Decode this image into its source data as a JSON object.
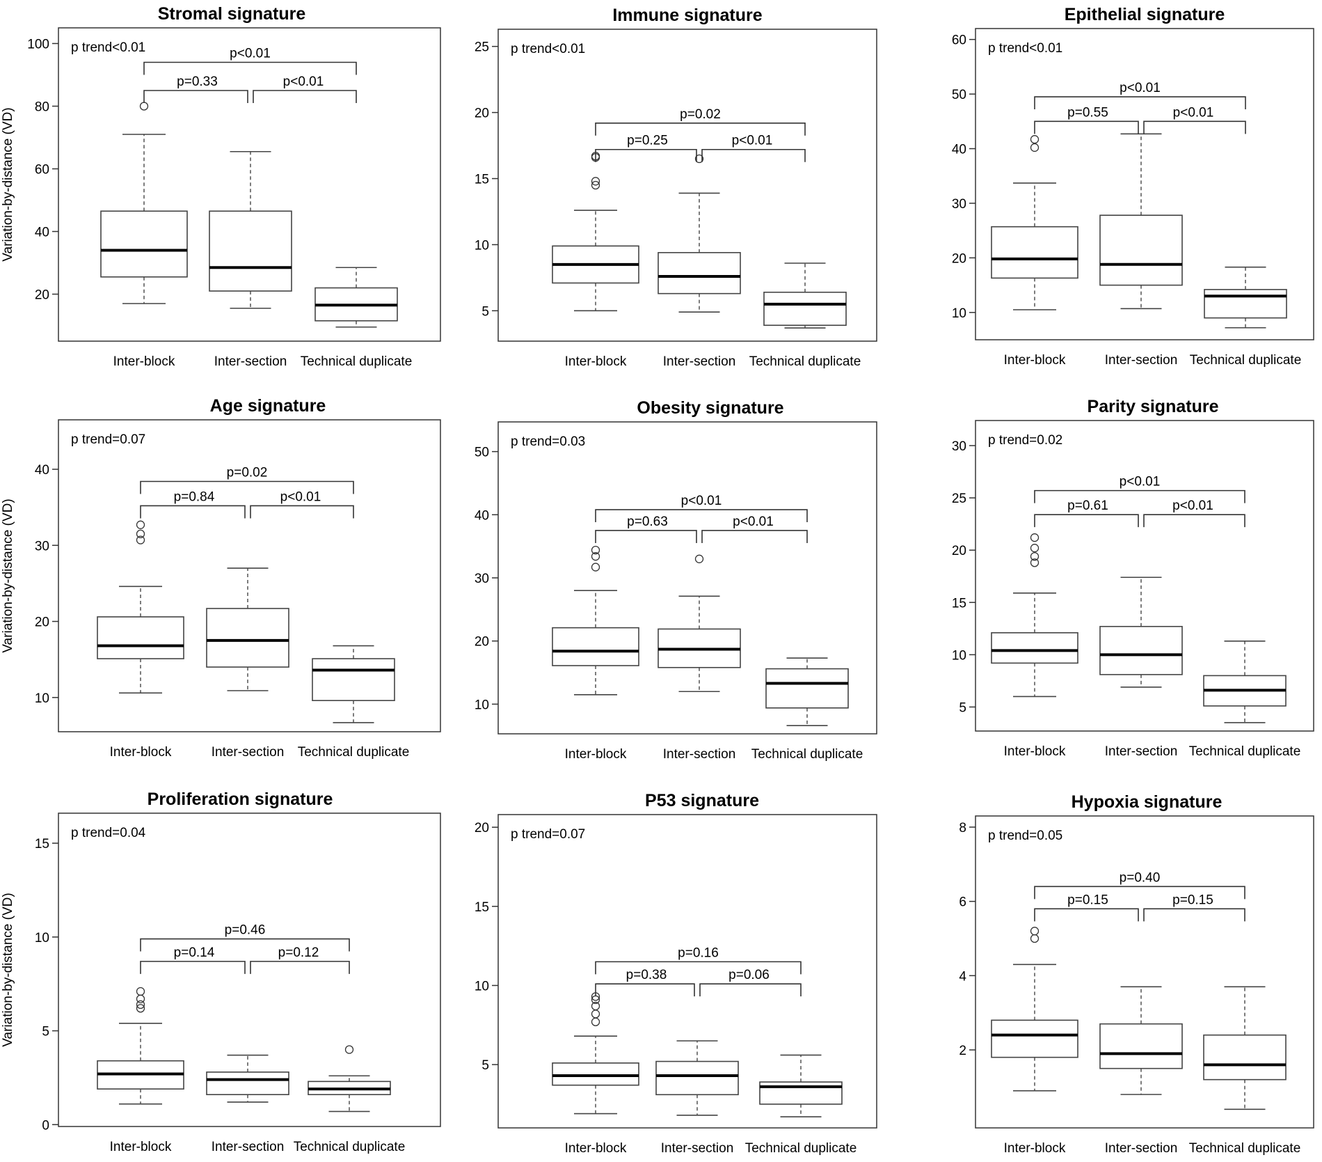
{
  "figure": {
    "ylabel": "Variation-by-distance (VD)",
    "categories": [
      "Inter-block",
      "Inter-section",
      "Technical duplicate"
    ]
  },
  "chart_data": [
    {
      "type": "box",
      "title": "Stromal signature",
      "ylabel": "Variation-by-distance (VD)",
      "categories": [
        "Inter-block",
        "Inter-section",
        "Technical duplicate"
      ],
      "ylim": [
        5,
        105
      ],
      "yticks": [
        20,
        40,
        60,
        80,
        100
      ],
      "boxes": [
        {
          "lw": 17,
          "q1": 25.5,
          "med": 34,
          "q3": 46.5,
          "uw": 71,
          "outliers": [
            80
          ]
        },
        {
          "lw": 15.5,
          "q1": 21,
          "med": 28.5,
          "q3": 46.5,
          "uw": 65.5,
          "outliers": []
        },
        {
          "lw": 9.5,
          "q1": 11.5,
          "med": 16.5,
          "q3": 22,
          "uw": 28.5,
          "outliers": []
        }
      ],
      "trend": "p trend<0.01",
      "p12": "p=0.33",
      "p23": "p<0.01",
      "p13": "p<0.01",
      "brackets": {
        "inner": 85,
        "outer": 94
      }
    },
    {
      "type": "box",
      "title": "Immune signature",
      "ylabel": "",
      "categories": [
        "Inter-block",
        "Inter-section",
        "Technical duplicate"
      ],
      "ylim": [
        2.7,
        26.3
      ],
      "yticks": [
        5,
        10,
        15,
        20,
        25
      ],
      "boxes": [
        {
          "lw": 5,
          "q1": 7.1,
          "med": 8.5,
          "q3": 9.9,
          "uw": 12.6,
          "outliers": [
            14.5,
            14.8,
            16.6,
            16.7
          ]
        },
        {
          "lw": 4.9,
          "q1": 6.3,
          "med": 7.6,
          "q3": 9.4,
          "uw": 13.9,
          "outliers": [
            16.5
          ]
        },
        {
          "lw": 3.7,
          "q1": 3.9,
          "med": 5.5,
          "q3": 6.4,
          "uw": 8.6,
          "outliers": []
        }
      ],
      "trend": "p trend<0.01",
      "p12": "p=0.25",
      "p23": "p<0.01",
      "p13": "p=0.02",
      "brackets": {
        "inner": 17.2,
        "outer": 19.2
      }
    },
    {
      "type": "box",
      "title": "Epithelial signature",
      "ylabel": "",
      "categories": [
        "Inter-block",
        "Inter-section",
        "Technical duplicate"
      ],
      "ylim": [
        5,
        62
      ],
      "yticks": [
        10,
        20,
        30,
        40,
        50,
        60
      ],
      "boxes": [
        {
          "lw": 10.5,
          "q1": 16.3,
          "med": 19.8,
          "q3": 25.7,
          "uw": 33.7,
          "outliers": [
            40.2,
            41.7
          ]
        },
        {
          "lw": 10.7,
          "q1": 15,
          "med": 18.8,
          "q3": 27.8,
          "uw": 42.7,
          "outliers": []
        },
        {
          "lw": 7.2,
          "q1": 9,
          "med": 13,
          "q3": 14.2,
          "uw": 18.3,
          "outliers": []
        }
      ],
      "trend": "p trend<0.01",
      "p12": "p=0.55",
      "p23": "p<0.01",
      "p13": "p<0.01",
      "brackets": {
        "inner": 45,
        "outer": 49.5
      }
    },
    {
      "type": "box",
      "title": "Age signature",
      "ylabel": "Variation-by-distance (VD)",
      "categories": [
        "Inter-block",
        "Inter-section",
        "Technical duplicate"
      ],
      "ylim": [
        5.5,
        46.5
      ],
      "yticks": [
        10,
        20,
        30,
        40
      ],
      "boxes": [
        {
          "lw": 10.6,
          "q1": 15.1,
          "med": 16.8,
          "q3": 20.6,
          "uw": 24.6,
          "outliers": [
            30.7,
            31.5,
            32.7
          ]
        },
        {
          "lw": 10.9,
          "q1": 14,
          "med": 17.5,
          "q3": 21.7,
          "uw": 27,
          "outliers": []
        },
        {
          "lw": 6.7,
          "q1": 9.6,
          "med": 13.6,
          "q3": 15.1,
          "uw": 16.8,
          "outliers": []
        }
      ],
      "trend": "p trend=0.07",
      "p12": "p=0.84",
      "p23": "p<0.01",
      "p13": "p=0.02",
      "brackets": {
        "inner": 35.2,
        "outer": 38.4
      }
    },
    {
      "type": "box",
      "title": "Obesity signature",
      "ylabel": "",
      "categories": [
        "Inter-block",
        "Inter-section",
        "Technical duplicate"
      ],
      "ylim": [
        5.3,
        54.7
      ],
      "yticks": [
        10,
        20,
        30,
        40,
        50
      ],
      "boxes": [
        {
          "lw": 11.5,
          "q1": 16.1,
          "med": 18.4,
          "q3": 22.1,
          "uw": 28,
          "outliers": [
            31.7,
            33.4,
            34.4
          ]
        },
        {
          "lw": 12,
          "q1": 15.8,
          "med": 18.7,
          "q3": 21.9,
          "uw": 27.1,
          "outliers": [
            33
          ]
        },
        {
          "lw": 6.6,
          "q1": 9.4,
          "med": 13.3,
          "q3": 15.6,
          "uw": 17.3,
          "outliers": []
        }
      ],
      "trend": "p trend=0.03",
      "p12": "p=0.63",
      "p23": "p<0.01",
      "p13": "p<0.01",
      "brackets": {
        "inner": 37.5,
        "outer": 40.8
      }
    },
    {
      "type": "box",
      "title": "Parity signature",
      "ylabel": "",
      "categories": [
        "Inter-block",
        "Inter-section",
        "Technical duplicate"
      ],
      "ylim": [
        2.7,
        32.4
      ],
      "yticks": [
        5,
        10,
        15,
        20,
        25,
        30
      ],
      "boxes": [
        {
          "lw": 6,
          "q1": 9.2,
          "med": 10.4,
          "q3": 12.1,
          "uw": 15.9,
          "outliers": [
            18.8,
            19.4,
            20.2,
            21.2
          ]
        },
        {
          "lw": 6.9,
          "q1": 8.1,
          "med": 10,
          "q3": 12.7,
          "uw": 17.4,
          "outliers": []
        },
        {
          "lw": 3.5,
          "q1": 5.1,
          "med": 6.6,
          "q3": 8,
          "uw": 11.3,
          "outliers": []
        }
      ],
      "trend": "p trend=0.02",
      "p12": "p=0.61",
      "p23": "p<0.01",
      "p13": "p<0.01",
      "brackets": {
        "inner": 23.4,
        "outer": 25.7
      }
    },
    {
      "type": "box",
      "title": "Proliferation signature",
      "ylabel": "Variation-by-distance (VD)",
      "categories": [
        "Inter-block",
        "Inter-section",
        "Technical duplicate"
      ],
      "ylim": [
        -0.1,
        16.6
      ],
      "yticks": [
        0,
        5,
        10,
        15
      ],
      "boxes": [
        {
          "lw": 1.1,
          "q1": 1.9,
          "med": 2.7,
          "q3": 3.4,
          "uw": 5.4,
          "outliers": [
            6.2,
            6.4,
            6.7,
            7.1
          ]
        },
        {
          "lw": 1.2,
          "q1": 1.6,
          "med": 2.4,
          "q3": 2.8,
          "uw": 3.7,
          "outliers": []
        },
        {
          "lw": 0.7,
          "q1": 1.6,
          "med": 1.9,
          "q3": 2.3,
          "uw": 2.6,
          "outliers": [
            4
          ]
        }
      ],
      "trend": "p trend=0.04",
      "p12": "p=0.14",
      "p23": "p=0.12",
      "p13": "p=0.46",
      "brackets": {
        "inner": 8.7,
        "outer": 9.9
      }
    },
    {
      "type": "box",
      "title": "P53 signature",
      "ylabel": "",
      "categories": [
        "Inter-block",
        "Inter-section",
        "Technical duplicate"
      ],
      "ylim": [
        1,
        20.8
      ],
      "yticks": [
        5,
        10,
        15,
        20
      ],
      "boxes": [
        {
          "lw": 1.9,
          "q1": 3.7,
          "med": 4.3,
          "q3": 5.1,
          "uw": 6.8,
          "outliers": [
            7.7,
            8.2,
            8.7,
            9.1,
            9.3
          ]
        },
        {
          "lw": 1.8,
          "q1": 3.1,
          "med": 4.3,
          "q3": 5.2,
          "uw": 6.5,
          "outliers": []
        },
        {
          "lw": 1.7,
          "q1": 2.5,
          "med": 3.6,
          "q3": 3.9,
          "uw": 5.6,
          "outliers": []
        }
      ],
      "trend": "p trend=0.07",
      "p12": "p=0.38",
      "p23": "p=0.06",
      "p13": "p=0.16",
      "brackets": {
        "inner": 10.1,
        "outer": 11.5
      }
    },
    {
      "type": "box",
      "title": "Hypoxia signature",
      "ylabel": "",
      "categories": [
        "Inter-block",
        "Inter-section",
        "Technical duplicate"
      ],
      "ylim": [
        -0.1,
        8.3
      ],
      "yticks": [
        2,
        4,
        6,
        8
      ],
      "boxes": [
        {
          "lw": 0.9,
          "q1": 1.8,
          "med": 2.4,
          "q3": 2.8,
          "uw": 4.3,
          "outliers": [
            5,
            5.2
          ]
        },
        {
          "lw": 0.8,
          "q1": 1.5,
          "med": 1.9,
          "q3": 2.7,
          "uw": 3.7,
          "outliers": []
        },
        {
          "lw": 0.4,
          "q1": 1.2,
          "med": 1.6,
          "q3": 2.4,
          "uw": 3.7,
          "outliers": []
        }
      ],
      "trend": "p trend=0.05",
      "p12": "p=0.15",
      "p23": "p=0.15",
      "p13": "p=0.40",
      "brackets": {
        "inner": 5.8,
        "outer": 6.4
      }
    }
  ]
}
